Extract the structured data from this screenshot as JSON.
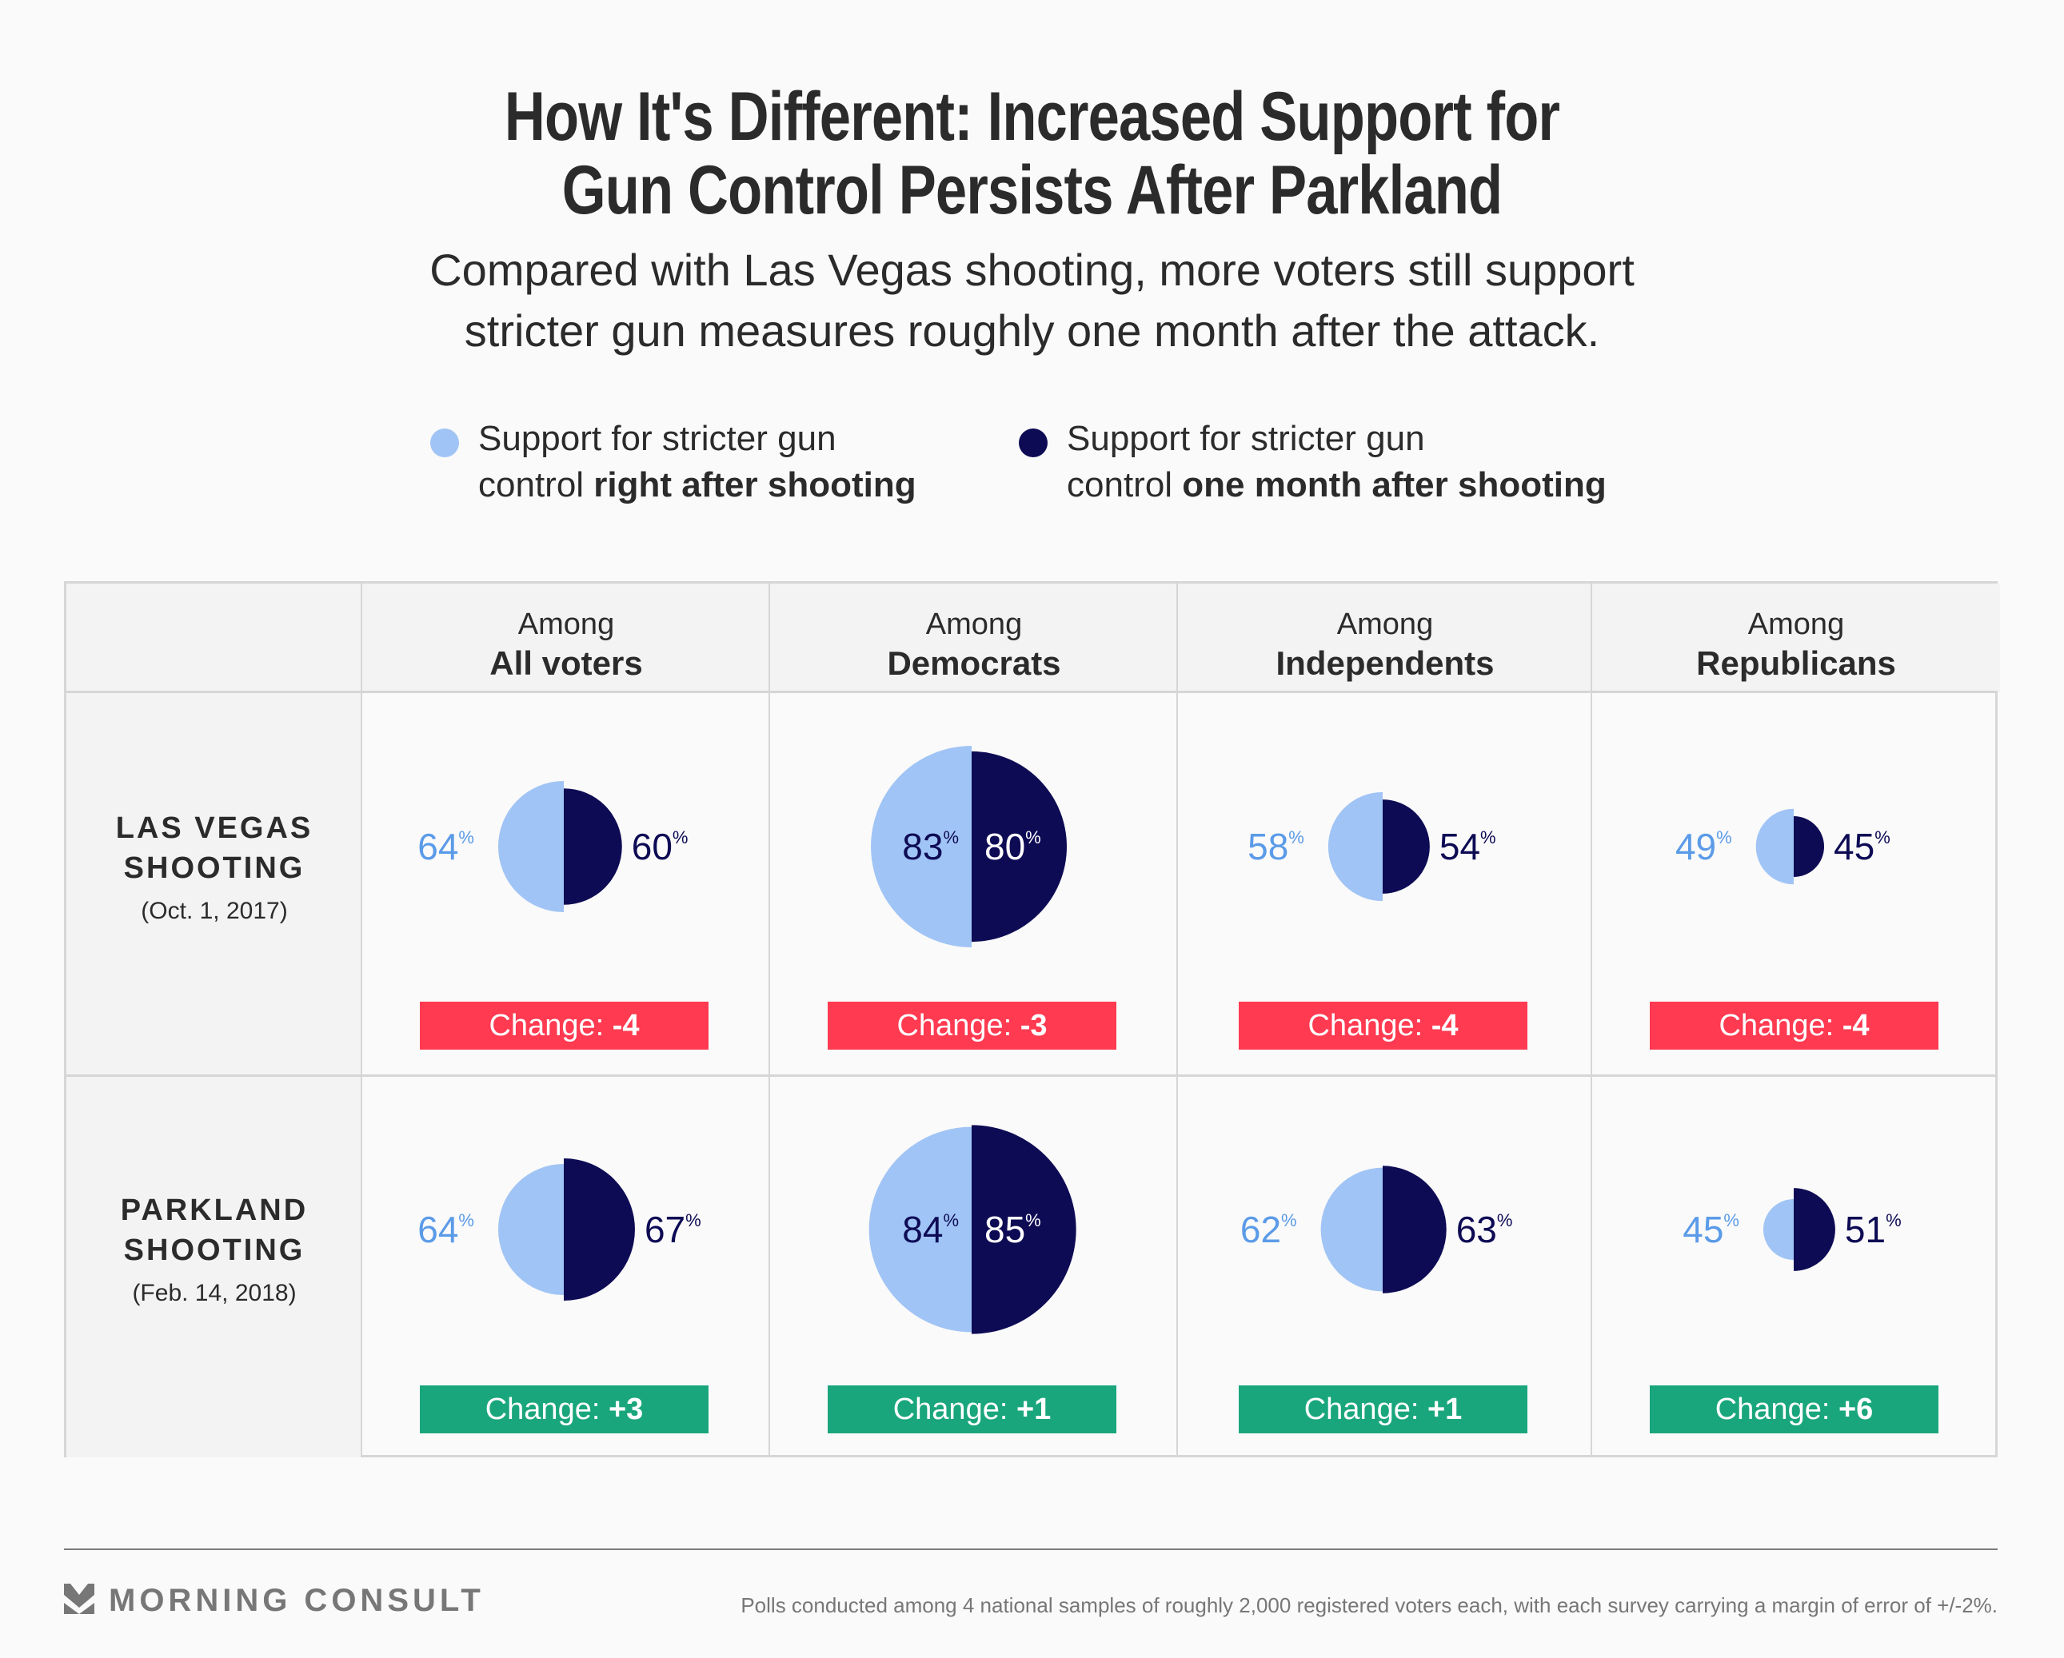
{
  "title_lines": [
    "How It's Different: Increased Support for",
    "Gun Control Persists After Parkland"
  ],
  "subtitle_lines": [
    "Compared with Las Vegas shooting, more voters still support",
    "stricter gun measures roughly one month after the attack."
  ],
  "legend": [
    {
      "line1": "Support for stricter gun",
      "line2_plain": "control ",
      "line2_bold": "right after shooting",
      "color": "#a0c4f5"
    },
    {
      "line1": "Support for stricter gun",
      "line2_plain": "control ",
      "line2_bold": "one month after shooting",
      "color": "#0e0b55"
    }
  ],
  "colors": {
    "right_after": "#a0c4f5",
    "right_after_label": "#5b9be8",
    "one_month": "#0e0b55",
    "negative": "#ff3a51",
    "positive": "#1aa67c"
  },
  "columns": [
    {
      "among": "Among",
      "group": "All voters"
    },
    {
      "among": "Among",
      "group": "Democrats"
    },
    {
      "among": "Among",
      "group": "Independents"
    },
    {
      "among": "Among",
      "group": "Republicans"
    }
  ],
  "rows": [
    {
      "name_line1": "LAS VEGAS",
      "name_line2": "SHOOTING",
      "date": "(Oct. 1, 2017)"
    },
    {
      "name_line1": "PARKLAND",
      "name_line2": "SHOOTING",
      "date": "(Feb. 14, 2018)"
    }
  ],
  "change_prefix": "Change: ",
  "chart_data": {
    "type": "table",
    "title": "How It's Different: Increased Support for Gun Control Persists After Parkland",
    "series": [
      {
        "name": "Support for stricter gun control right after shooting"
      },
      {
        "name": "Support for stricter gun control one month after shooting"
      }
    ],
    "categories": [
      "All voters",
      "Democrats",
      "Independents",
      "Republicans"
    ],
    "rows": [
      {
        "event": "Las Vegas Shooting (Oct. 1, 2017)",
        "right_after": [
          64,
          83,
          58,
          49
        ],
        "one_month": [
          60,
          80,
          54,
          45
        ],
        "change": [
          "-4",
          "-3",
          "-4",
          "-4"
        ]
      },
      {
        "event": "Parkland Shooting (Feb. 14, 2018)",
        "right_after": [
          64,
          84,
          62,
          45
        ],
        "one_month": [
          67,
          85,
          63,
          51
        ],
        "change": [
          "+3",
          "+1",
          "+1",
          "+6"
        ]
      }
    ],
    "unit": "%"
  },
  "footer": {
    "brand": "MORNING CONSULT",
    "note": "Polls conducted among 4 national samples of roughly 2,000 registered voters each, with each survey carrying a margin of error of +/-2%."
  }
}
